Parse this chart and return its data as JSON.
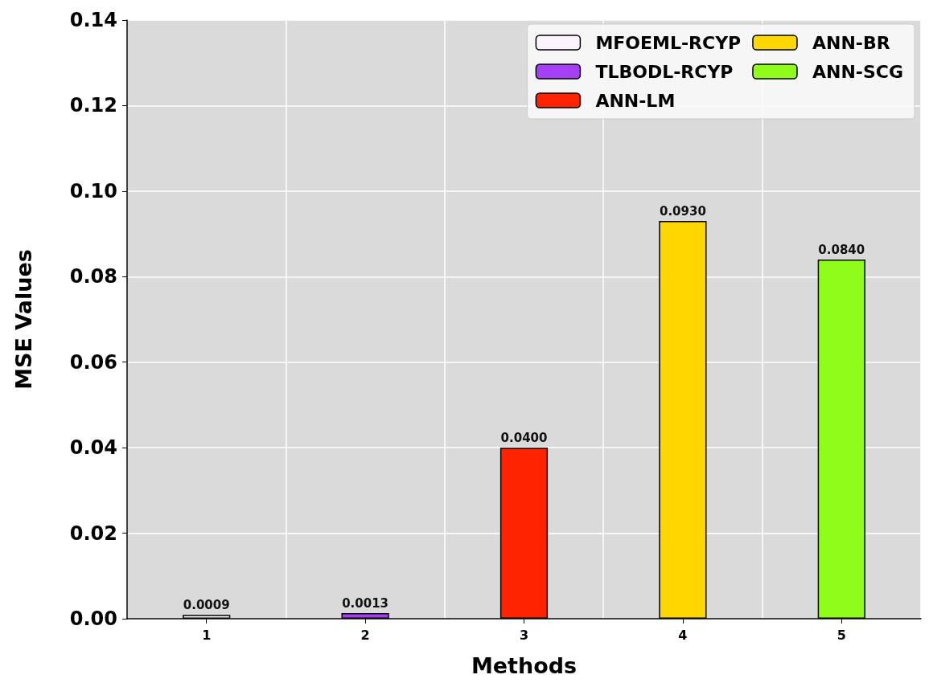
{
  "chart_data": {
    "type": "bar",
    "xlabel": "Methods",
    "ylabel": "MSE Values",
    "categories": [
      "1",
      "2",
      "3",
      "4",
      "5"
    ],
    "series": [
      {
        "name": "MFOEML-RCYP",
        "color": "#fcf4fc",
        "values": [
          0.0009,
          null,
          null,
          null,
          null
        ],
        "value_labels": [
          "0.0009",
          null,
          null,
          null,
          null
        ]
      },
      {
        "name": "TLBODL-RCYP",
        "color": "#a53ff5",
        "values": [
          null,
          0.0013,
          null,
          null,
          null
        ],
        "value_labels": [
          null,
          "0.0013",
          null,
          null,
          null
        ]
      },
      {
        "name": "ANN-LM",
        "color": "#ff2200",
        "values": [
          null,
          null,
          0.04,
          null,
          null
        ],
        "value_labels": [
          null,
          null,
          "0.0400",
          null,
          null
        ]
      },
      {
        "name": "ANN-BR",
        "color": "#ffd700",
        "values": [
          null,
          null,
          null,
          0.093,
          null
        ],
        "value_labels": [
          null,
          null,
          null,
          "0.0930",
          null
        ]
      },
      {
        "name": "ANN-SCG",
        "color": "#8ffc1a",
        "values": [
          null,
          null,
          null,
          null,
          0.084
        ],
        "value_labels": [
          null,
          null,
          null,
          null,
          "0.0840"
        ]
      }
    ],
    "ylim": [
      0,
      0.14
    ],
    "yticks": [
      {
        "value": 0,
        "label": "0.00"
      },
      {
        "value": 0.02,
        "label": "0.02"
      },
      {
        "value": 0.04,
        "label": "0.04"
      },
      {
        "value": 0.06,
        "label": "0.06"
      },
      {
        "value": 0.08,
        "label": "0.08"
      },
      {
        "value": 0.1,
        "label": "0.10"
      },
      {
        "value": 0.12,
        "label": "0.12"
      },
      {
        "value": 0.14,
        "label": "0.14"
      }
    ],
    "grid": true,
    "legend": "top right"
  }
}
